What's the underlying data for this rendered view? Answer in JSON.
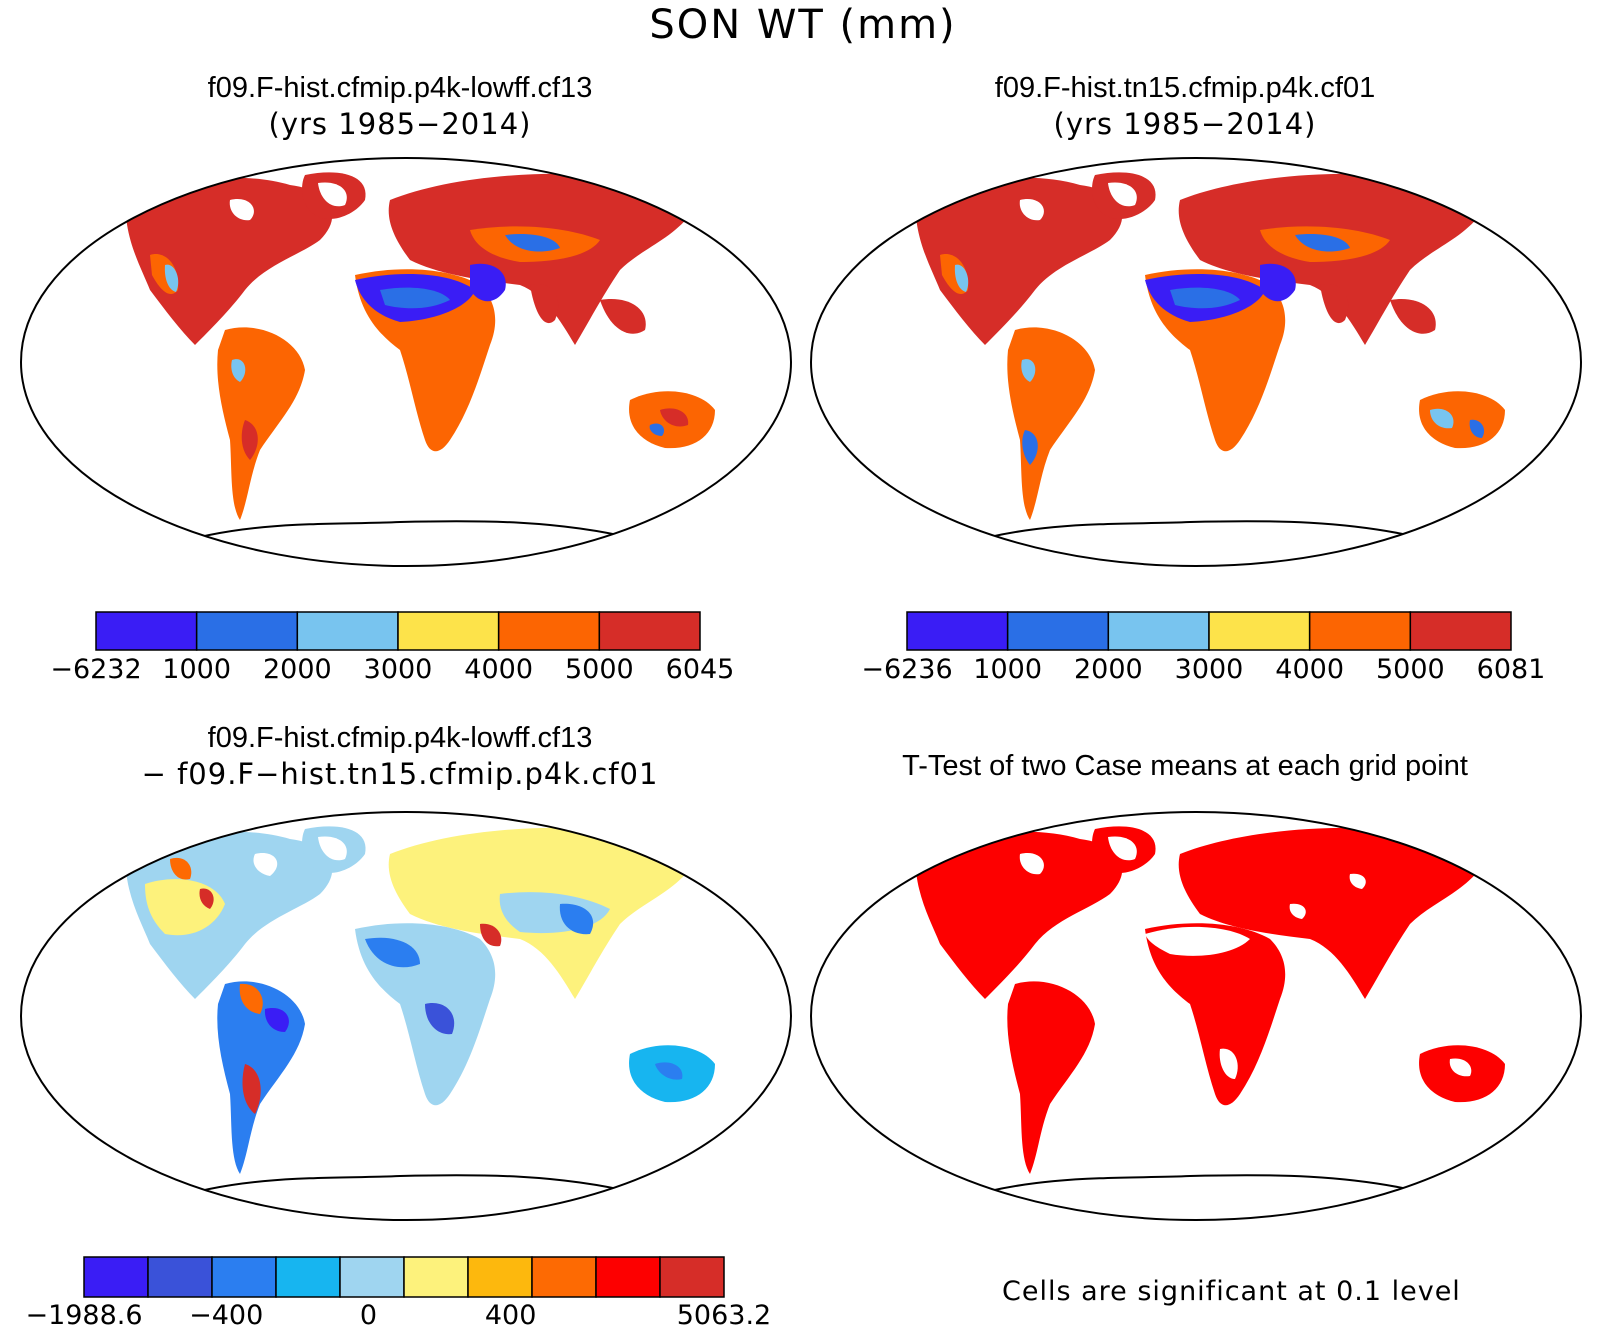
{
  "figure": {
    "title": "SON WT (mm)"
  },
  "panels": [
    {
      "id": "case1",
      "title_line1": "f09.F-hist.cfmip.p4k-lowff.cf13",
      "title_line2": "(yrs 1985−2014)",
      "colorbar": {
        "colors": [
          "#3a1df5",
          "#2a6fe6",
          "#78c4ef",
          "#fde34a",
          "#fc6502",
          "#d62d28"
        ],
        "labels": [
          "−6232",
          "1000",
          "2000",
          "3000",
          "4000",
          "5000",
          "6045"
        ]
      }
    },
    {
      "id": "case2",
      "title_line1": "f09.F-hist.tn15.cfmip.p4k.cf01",
      "title_line2": "(yrs 1985−2014)",
      "colorbar": {
        "colors": [
          "#3a1df5",
          "#2a6fe6",
          "#78c4ef",
          "#fde34a",
          "#fc6502",
          "#d62d28"
        ],
        "labels": [
          "−6236",
          "1000",
          "2000",
          "3000",
          "4000",
          "5000",
          "6081"
        ]
      }
    },
    {
      "id": "difference",
      "title_line1": "f09.F-hist.cfmip.p4k-lowff.cf13",
      "title_line2": "− f09.F−hist.tn15.cfmip.p4k.cf01",
      "colorbar": {
        "colors": [
          "#3a1df5",
          "#3a52d9",
          "#2b7ef0",
          "#17b5f0",
          "#9fd5f0",
          "#fdf27c",
          "#fdb80d",
          "#fd6a03",
          "#fd0000",
          "#d62d28"
        ],
        "labels": [
          "−1988.6",
          "",
          "−400",
          "",
          "0",
          "",
          "400",
          "",
          "",
          "5063.2"
        ]
      }
    },
    {
      "id": "ttest",
      "title_line1": "T-Test of two Case means at each grid point",
      "note": "Cells are significant at 0.1 level",
      "significant_color": "#fd0000"
    }
  ]
}
